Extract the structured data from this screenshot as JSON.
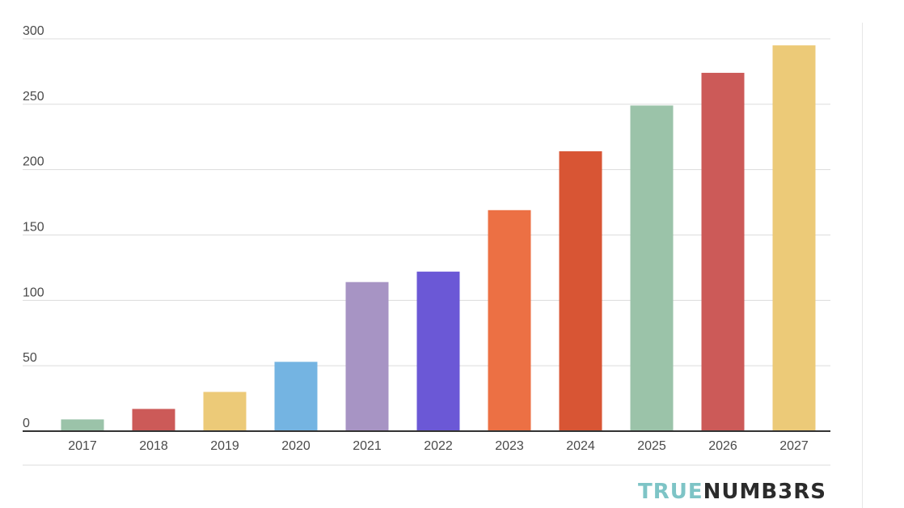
{
  "chart_data": {
    "type": "bar",
    "categories": [
      "2017",
      "2018",
      "2019",
      "2020",
      "2021",
      "2022",
      "2023",
      "2024",
      "2025",
      "2026",
      "2027"
    ],
    "values": [
      9,
      17,
      30,
      53,
      114,
      122,
      169,
      214,
      249,
      274,
      295
    ],
    "ylim": [
      0,
      300
    ],
    "yticks": [
      0,
      50,
      100,
      150,
      200,
      250,
      300
    ],
    "grid": true,
    "legend": "none",
    "bar_colors": [
      "#9bc3a9",
      "#cc5a58",
      "#ecca78",
      "#74b4e2",
      "#a794c4",
      "#6b58d6",
      "#ec7044",
      "#d85534",
      "#9bc3a9",
      "#cc5a58",
      "#ecca78"
    ]
  },
  "watermark": {
    "part1": "TRUE",
    "part2": "NUMB3RS",
    "color1": "#7ec4c6",
    "color2": "#2b2b2b"
  }
}
